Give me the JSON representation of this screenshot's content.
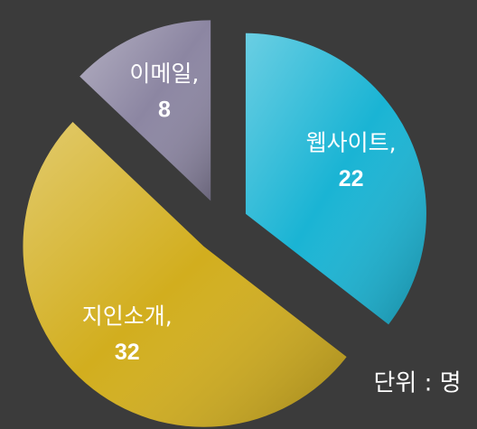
{
  "chart_data": {
    "type": "pie",
    "categories": [
      "웹사이트,",
      "지인소개,",
      "이메일,"
    ],
    "values": [
      22,
      32,
      8
    ],
    "colors": [
      "#1ab4d4",
      "#d2ae1e",
      "#8c86a2"
    ],
    "annotation": "단위 : 명"
  }
}
